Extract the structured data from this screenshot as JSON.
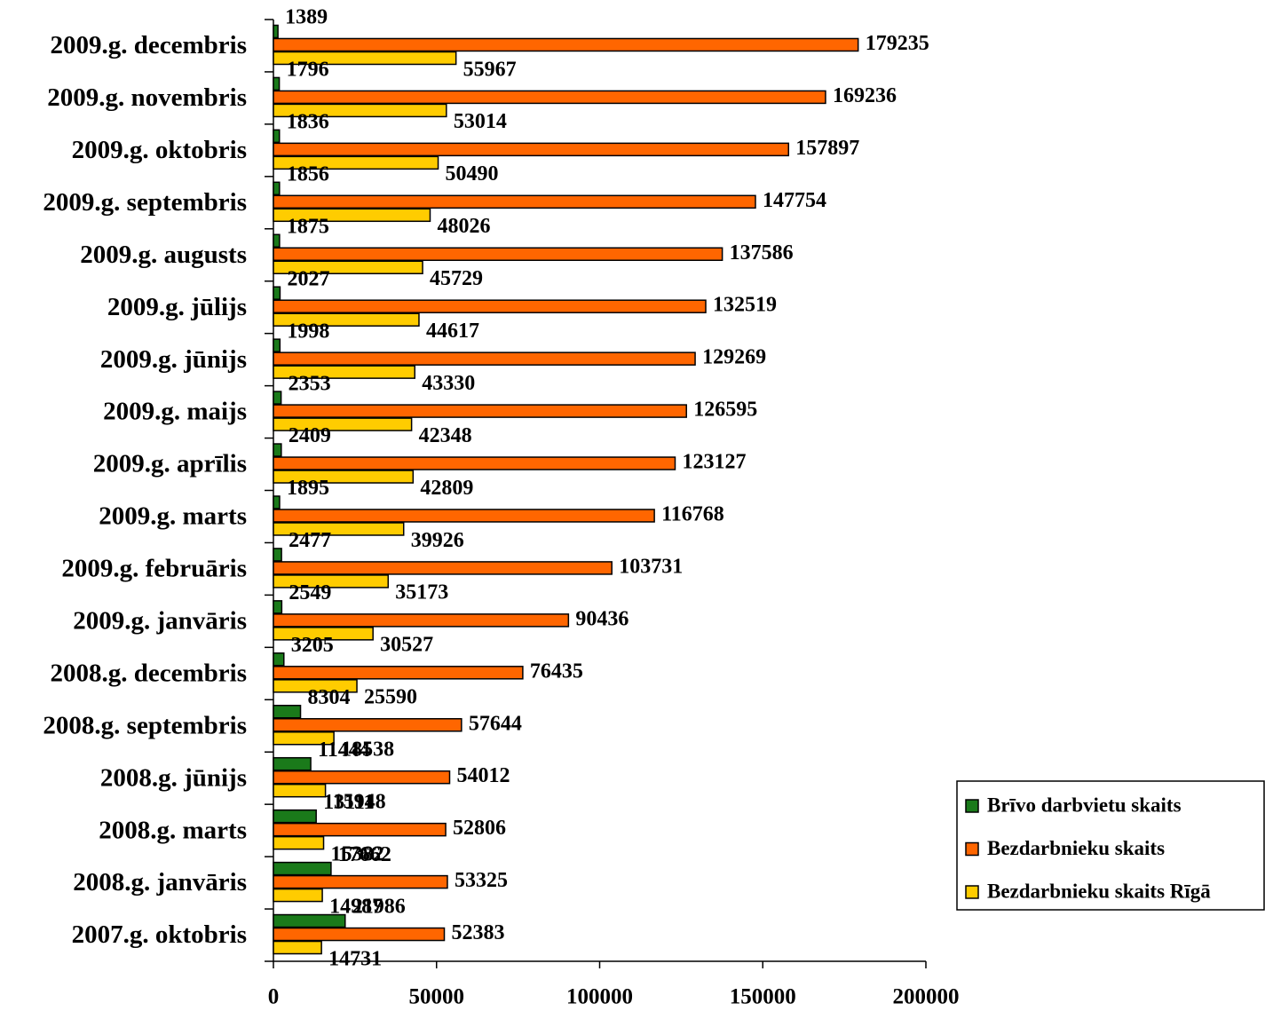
{
  "chart_data": {
    "type": "bar",
    "orientation": "horizontal",
    "categories": [
      "2009.g. decembris",
      "2009.g. novembris",
      "2009.g. oktobris",
      "2009.g. septembris",
      "2009.g. augusts",
      "2009.g. jūlijs",
      "2009.g. jūnijs",
      "2009.g. maijs",
      "2009.g. aprīlis",
      "2009.g. marts",
      "2009.g. februāris",
      "2009.g. janvāris",
      "2008.g. decembris",
      "2008.g. septembris",
      "2008.g. jūnijs",
      "2008.g. marts",
      "2008.g. janvāris",
      "2007.g. oktobris"
    ],
    "series": [
      {
        "name": "Brīvo darbvietu skaits",
        "color": "#1a7a1a",
        "values": [
          1389,
          1796,
          1836,
          1856,
          1875,
          2027,
          1998,
          2353,
          2409,
          1895,
          2477,
          2549,
          3205,
          8304,
          11444,
          13111,
          17662,
          21986
        ]
      },
      {
        "name": "Bezdarbnieku skaits",
        "color": "#ff6600",
        "values": [
          179235,
          169236,
          157897,
          147754,
          137586,
          132519,
          129269,
          126595,
          123127,
          116768,
          103731,
          90436,
          76435,
          57644,
          54012,
          52806,
          53325,
          52383
        ]
      },
      {
        "name": "Bezdarbnieku skaits Rīgā",
        "color": "#ffcc00",
        "values": [
          55967,
          53014,
          50490,
          48026,
          45729,
          44617,
          43330,
          42348,
          42809,
          39926,
          35173,
          30527,
          25590,
          18538,
          15948,
          15382,
          14987,
          14731
        ]
      }
    ],
    "xlim": [
      0,
      200000
    ],
    "xticks": [
      0,
      50000,
      100000,
      150000,
      200000
    ],
    "legend": "right"
  }
}
